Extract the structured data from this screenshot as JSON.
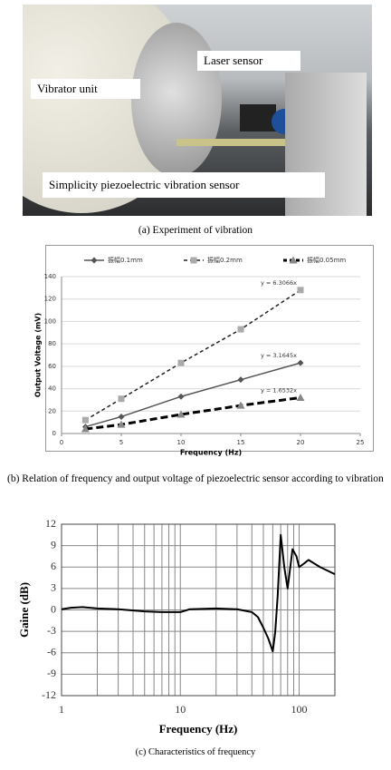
{
  "photo": {
    "labels": [
      "Laser sensor",
      "Vibrator unit",
      "Simplicity piezoelectric vibration sensor"
    ],
    "caption": "(a) Experiment of vibration"
  },
  "chart_data": [
    {
      "type": "line",
      "caption": "(b) Relation of frequency and output voltage of piezoelectric sensor according to vibration",
      "xlabel": "Frequency (Hz)",
      "ylabel": "Output Voltage (mV)",
      "x": [
        2,
        5,
        10,
        15,
        20
      ],
      "series": [
        {
          "name": "振幅0.1mm",
          "color": "#555555",
          "marker": "diamond",
          "dash": "solid",
          "width": 1.5,
          "values": [
            6,
            15,
            33,
            48,
            63
          ],
          "trendline_label": "y = 3.1645x"
        },
        {
          "name": "振幅0.2mm",
          "color": "#222222",
          "marker_color": "#aaaaaa",
          "marker": "square",
          "dash": "dashed",
          "width": 1.5,
          "values": [
            12,
            31,
            63,
            93,
            128
          ],
          "trendline_label": "y = 6.3066x"
        },
        {
          "name": "振幅0.05mm",
          "color": "#000000",
          "marker_color": "#888888",
          "marker": "triangle",
          "dash": "dashed",
          "width": 3,
          "values": [
            4,
            8,
            17,
            25,
            32
          ],
          "trendline_label": "y = 1.6532x"
        }
      ],
      "xlim": [
        0,
        25
      ],
      "xticks": [
        0,
        5,
        10,
        15,
        20,
        25
      ],
      "ylim": [
        0,
        140
      ],
      "yticks": [
        0,
        20,
        40,
        60,
        80,
        100,
        120,
        140
      ],
      "grid": true,
      "legend": "top"
    },
    {
      "type": "line",
      "caption": "(c) Characteristics of frequency",
      "xlabel": "Frequency (Hz)",
      "ylabel": "Gaine (dB)",
      "xscale": "log",
      "x": [
        1,
        1.2,
        1.5,
        2,
        3,
        5,
        7,
        10,
        11,
        12,
        20,
        30,
        40,
        45,
        50,
        55,
        60,
        63,
        66,
        70,
        75,
        80,
        88,
        95,
        100,
        110,
        120,
        150,
        200
      ],
      "series": [
        {
          "name": null,
          "color": "#000000",
          "width": 2,
          "values": [
            0.1,
            0.3,
            0.4,
            0.2,
            0.1,
            -0.2,
            -0.3,
            -0.3,
            -0.1,
            0.1,
            0.2,
            0.1,
            -0.3,
            -1,
            -2.5,
            -4,
            -5.8,
            -3,
            2,
            10.5,
            6,
            3,
            8.5,
            7.5,
            6,
            6.5,
            7,
            6,
            5
          ]
        }
      ],
      "xlim": [
        1,
        200
      ],
      "xticks": [
        1,
        10,
        100
      ],
      "ylim": [
        -12,
        12
      ],
      "yticks": [
        -12,
        -9,
        -6,
        -3,
        0,
        3,
        6,
        9,
        12
      ],
      "grid": true
    }
  ]
}
